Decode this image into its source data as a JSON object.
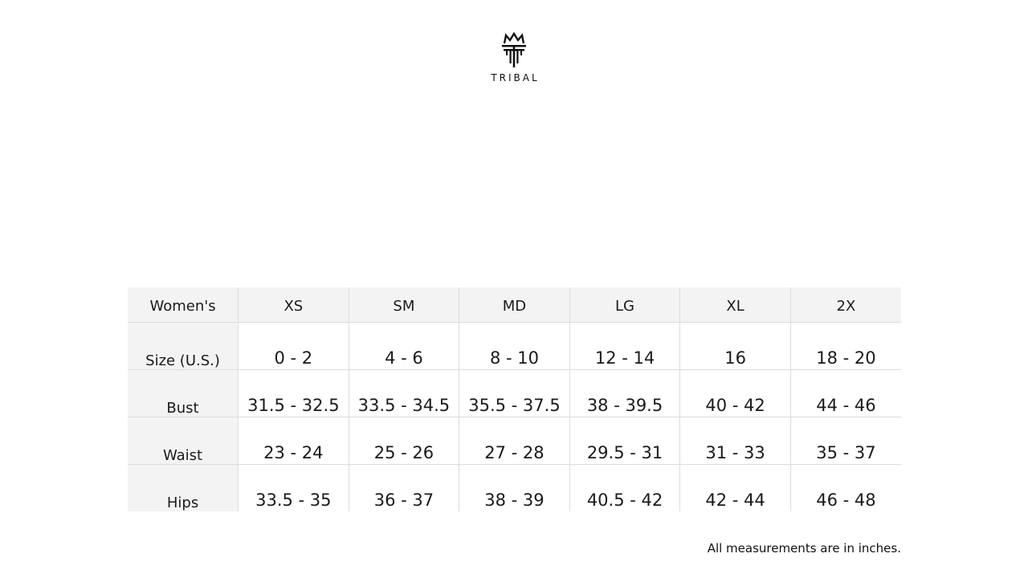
{
  "brand": {
    "name": "TRIBAL",
    "logo_icon": "crown-t-logo"
  },
  "table": {
    "header": [
      "Women's",
      "XS",
      "SM",
      "MD",
      "LG",
      "XL",
      "2X"
    ],
    "rows": [
      {
        "label": "Size (U.S.)",
        "values": [
          "0 - 2",
          "4 - 6",
          "8 - 10",
          "12 - 14",
          "16",
          "18 - 20"
        ]
      },
      {
        "label": "Bust",
        "values": [
          "31.5 - 32.5",
          "33.5 - 34.5",
          "35.5 - 37.5",
          "38 - 39.5",
          "40 - 42",
          "44 - 46"
        ]
      },
      {
        "label": "Waist",
        "values": [
          "23 - 24",
          "25 - 26",
          "27 - 28",
          "29.5 - 31",
          "31 - 33",
          "35 - 37"
        ]
      },
      {
        "label": "Hips",
        "values": [
          "33.5 - 35",
          "36 - 37",
          "38 - 39",
          "40.5 - 42",
          "42 - 44",
          "46 - 48"
        ]
      }
    ]
  },
  "footnote": "All measurements are in inches."
}
